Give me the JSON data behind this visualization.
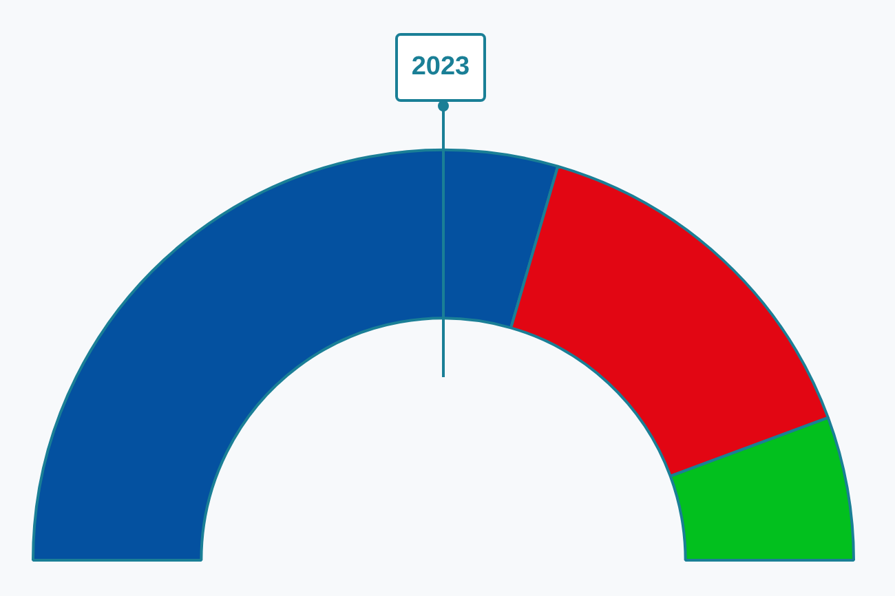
{
  "chart_data": {
    "type": "donut",
    "title": "2023",
    "categories": [
      null,
      null,
      null
    ],
    "values": [
      59,
      29.7,
      11.3
    ],
    "colors": [
      "#0451a0",
      "#e20613",
      "#02c01e"
    ],
    "legend": false
  }
}
